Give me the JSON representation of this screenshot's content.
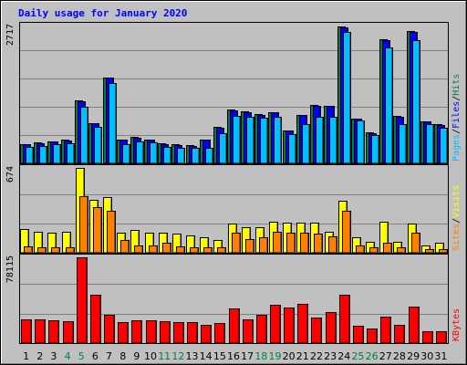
{
  "chart_data": [
    {
      "type": "bar",
      "title": "Daily usage for January 2020",
      "categories": [
        "1",
        "2",
        "3",
        "4",
        "5",
        "6",
        "7",
        "8",
        "9",
        "10",
        "11",
        "12",
        "13",
        "14",
        "15",
        "16",
        "17",
        "18",
        "19",
        "20",
        "21",
        "22",
        "23",
        "24",
        "25",
        "26",
        "27",
        "28",
        "29",
        "30",
        "31"
      ],
      "weekend_days": [
        "4",
        "5",
        "11",
        "12",
        "18",
        "19",
        "25",
        "26"
      ],
      "ymax_label": "2717",
      "ylim": [
        0,
        2717
      ],
      "legend": [
        {
          "name": "Hits",
          "color": "#008040"
        },
        {
          "name": "/",
          "color": "#000000"
        },
        {
          "name": "Files",
          "color": "#0000ff"
        },
        {
          "name": "/",
          "color": "#000000"
        },
        {
          "name": "Pages",
          "color": "#00c0ff"
        }
      ],
      "series": [
        {
          "name": "Hits",
          "color": "#008040",
          "values": [
            380,
            410,
            440,
            460,
            1240,
            800,
            1700,
            470,
            520,
            470,
            390,
            370,
            360,
            470,
            720,
            1060,
            1020,
            970,
            1010,
            650,
            960,
            1150,
            1140,
            2700,
            890,
            610,
            2440,
            930,
            2610,
            830,
            770
          ]
        },
        {
          "name": "Files",
          "color": "#0000ff",
          "values": [
            370,
            400,
            430,
            450,
            1230,
            790,
            1690,
            460,
            510,
            460,
            380,
            360,
            350,
            460,
            710,
            1050,
            1010,
            960,
            1000,
            640,
            950,
            1140,
            1130,
            2690,
            880,
            600,
            2430,
            920,
            2600,
            820,
            760
          ]
        },
        {
          "name": "Pages",
          "color": "#00c0ff",
          "values": [
            330,
            350,
            380,
            400,
            1110,
            720,
            1590,
            370,
            430,
            410,
            330,
            310,
            300,
            300,
            600,
            940,
            910,
            900,
            920,
            570,
            780,
            920,
            920,
            2600,
            850,
            550,
            2280,
            770,
            2430,
            770,
            700
          ]
        }
      ]
    },
    {
      "type": "bar",
      "ymax_label": "674",
      "ylim": [
        0,
        674
      ],
      "legend": [
        {
          "name": "Visits",
          "color": "#ffff00"
        },
        {
          "name": "/",
          "color": "#000000"
        },
        {
          "name": "Sites",
          "color": "#ff8000"
        }
      ],
      "series": [
        {
          "name": "Visits",
          "color": "#ffff00",
          "values": [
            190,
            170,
            160,
            170,
            674,
            420,
            440,
            160,
            180,
            160,
            160,
            150,
            140,
            120,
            100,
            230,
            200,
            200,
            250,
            240,
            240,
            240,
            170,
            410,
            120,
            90,
            250,
            90,
            230,
            60,
            80
          ]
        },
        {
          "name": "Sites",
          "color": "#ff8000",
          "values": [
            50,
            40,
            40,
            40,
            450,
            360,
            330,
            100,
            60,
            60,
            80,
            50,
            40,
            40,
            40,
            160,
            110,
            120,
            170,
            160,
            160,
            150,
            130,
            330,
            60,
            40,
            80,
            40,
            160,
            30,
            30
          ]
        }
      ]
    },
    {
      "type": "bar",
      "ymax_label": "78115",
      "ylim": [
        0,
        78115
      ],
      "legend": [
        {
          "name": "KBytes",
          "color": "#ff0000"
        }
      ],
      "series": [
        {
          "name": "KBytes",
          "color": "#ff0000",
          "values": [
            21200,
            21200,
            20800,
            20000,
            78115,
            44000,
            25500,
            18800,
            20800,
            20800,
            19600,
            19000,
            18800,
            17000,
            18300,
            31600,
            21600,
            25900,
            34500,
            32600,
            35600,
            23500,
            27900,
            43900,
            16000,
            13400,
            24500,
            16600,
            33000,
            11200,
            10800
          ]
        }
      ]
    }
  ]
}
